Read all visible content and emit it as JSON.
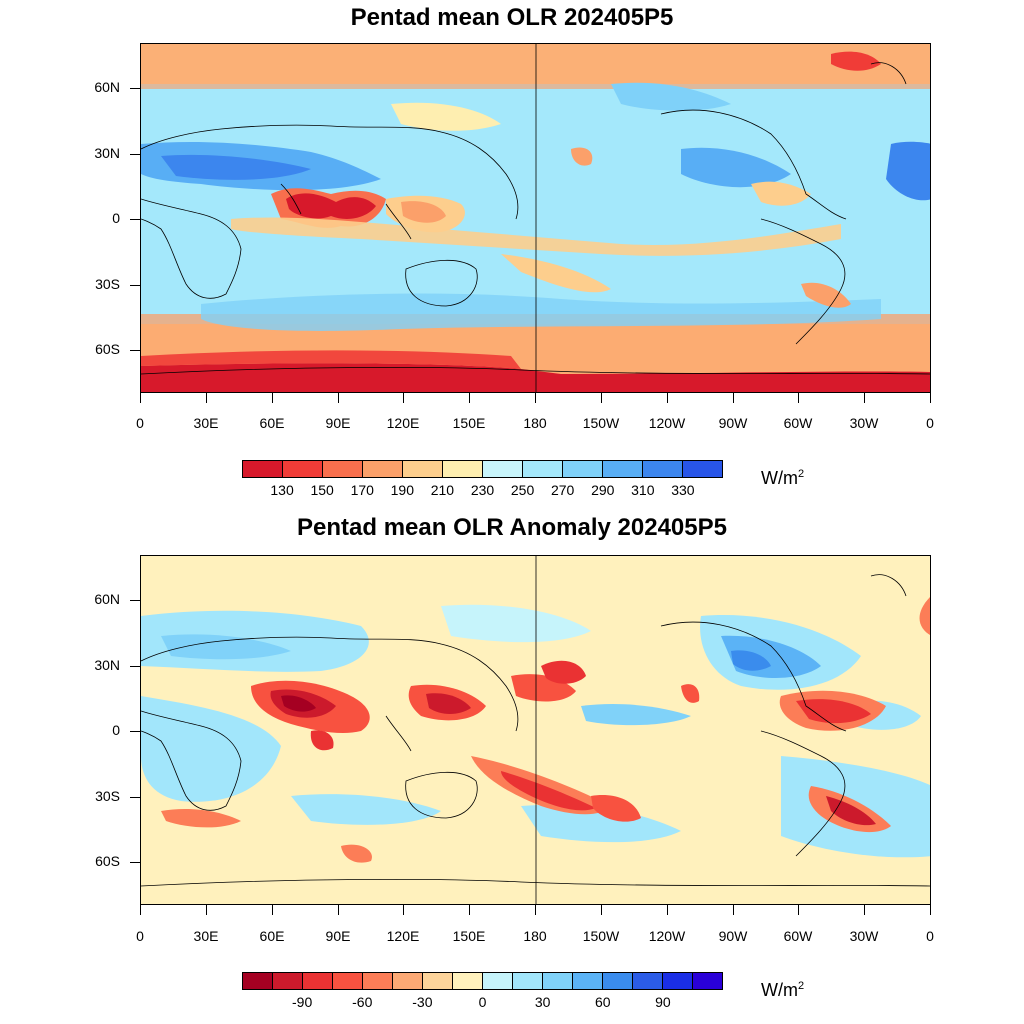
{
  "panels": [
    {
      "title": "Pentad mean OLR 202405P5",
      "units": "W/m",
      "units_sup": "2",
      "colorbar": {
        "colors": [
          "#d7192b",
          "#f03c37",
          "#f86f4d",
          "#fba06a",
          "#fdce8d",
          "#feeeb0",
          "#c8f5fb",
          "#a4e8fb",
          "#7fd1f9",
          "#58aef5",
          "#3c86ee",
          "#2855e8"
        ],
        "labels": [
          "130",
          "150",
          "170",
          "190",
          "210",
          "230",
          "250",
          "270",
          "290",
          "310",
          "330"
        ]
      },
      "lat_labels": [
        "60N",
        "30N",
        "0",
        "30S",
        "60S"
      ],
      "lon_labels": [
        "0",
        "30E",
        "60E",
        "90E",
        "120E",
        "150E",
        "180",
        "150W",
        "120W",
        "90W",
        "60W",
        "30W",
        "0"
      ]
    },
    {
      "title": "Pentad mean OLR Anomaly 202405P5",
      "units": "W/m",
      "units_sup": "2",
      "colorbar": {
        "colors": [
          "#a50022",
          "#cc1a2c",
          "#ea3233",
          "#f85240",
          "#fc7d57",
          "#fca975",
          "#fdd49b",
          "#fff1bd",
          "#c6f4fb",
          "#a2e6fb",
          "#80d2f9",
          "#5bb3f6",
          "#3a8ced",
          "#2b5ce7",
          "#1a2ee6",
          "#2a00d8"
        ],
        "labels": [
          "-90",
          "-60",
          "-30",
          "0",
          "30",
          "60",
          "90"
        ]
      },
      "lat_labels": [
        "60N",
        "30N",
        "0",
        "30S",
        "60S"
      ],
      "lon_labels": [
        "0",
        "30E",
        "60E",
        "90E",
        "120E",
        "150E",
        "180",
        "150W",
        "120W",
        "90W",
        "60W",
        "30W",
        "0"
      ]
    }
  ]
}
